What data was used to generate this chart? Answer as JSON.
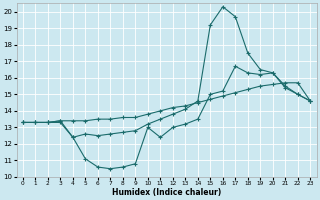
{
  "xlabel": "Humidex (Indice chaleur)",
  "ylabel": "",
  "xlim": [
    -0.5,
    23.5
  ],
  "ylim": [
    10,
    20.5
  ],
  "yticks": [
    10,
    11,
    12,
    13,
    14,
    15,
    16,
    17,
    18,
    19,
    20
  ],
  "xticks": [
    0,
    1,
    2,
    3,
    4,
    5,
    6,
    7,
    8,
    9,
    10,
    11,
    12,
    13,
    14,
    15,
    16,
    17,
    18,
    19,
    20,
    21,
    22,
    23
  ],
  "bg_color": "#cce8f0",
  "line_color": "#1a6b6b",
  "grid_color": "#ffffff",
  "series": {
    "curve1_x": [
      0,
      1,
      2,
      3,
      4,
      5,
      6,
      7,
      8,
      9,
      10,
      11,
      12,
      13,
      14,
      15,
      16,
      17,
      18,
      19,
      20,
      21,
      22,
      23
    ],
    "curve1_y": [
      13.3,
      13.3,
      13.3,
      13.3,
      12.4,
      11.1,
      10.6,
      10.5,
      10.6,
      10.8,
      13.0,
      12.4,
      13.0,
      13.2,
      13.5,
      15.0,
      15.2,
      16.7,
      16.3,
      16.2,
      16.3,
      15.4,
      15.0,
      14.6
    ],
    "curve2_x": [
      0,
      1,
      2,
      3,
      4,
      5,
      6,
      7,
      8,
      9,
      10,
      11,
      12,
      13,
      14,
      15,
      16,
      17,
      18,
      19,
      20,
      21,
      22,
      23
    ],
    "curve2_y": [
      13.3,
      13.3,
      13.3,
      13.4,
      13.4,
      13.4,
      13.5,
      13.5,
      13.6,
      13.6,
      13.8,
      14.0,
      14.2,
      14.3,
      14.5,
      14.7,
      14.9,
      15.1,
      15.3,
      15.5,
      15.6,
      15.7,
      15.7,
      14.6
    ],
    "curve3_x": [
      0,
      1,
      2,
      3,
      4,
      5,
      6,
      7,
      8,
      9,
      10,
      11,
      12,
      13,
      14,
      15,
      16,
      17,
      18,
      19,
      20,
      21,
      22,
      23
    ],
    "curve3_y": [
      13.3,
      13.3,
      13.3,
      13.4,
      12.4,
      12.6,
      12.5,
      12.6,
      12.7,
      12.8,
      13.2,
      13.5,
      13.8,
      14.1,
      14.6,
      19.2,
      20.3,
      19.7,
      17.5,
      16.5,
      16.3,
      15.5,
      15.0,
      14.6
    ]
  }
}
